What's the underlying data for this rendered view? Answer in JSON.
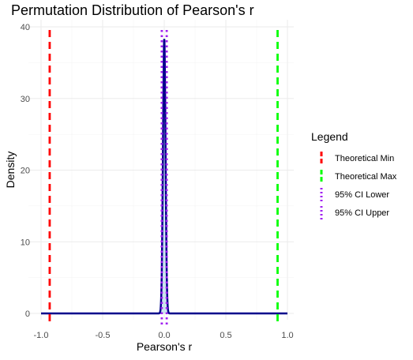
{
  "chart_data": {
    "type": "line",
    "title": "Permutation Distribution of Pearson's r",
    "xlabel": "Pearson's r",
    "ylabel": "Density",
    "xlim": [
      -1.0,
      1.0
    ],
    "ylim": [
      0,
      40
    ],
    "x_ticks": [
      -1.0,
      -0.5,
      0.0,
      0.5,
      1.0
    ],
    "x_tick_labels": [
      "-1.0",
      "-0.5",
      "0.0",
      "0.5",
      "1.0"
    ],
    "y_ticks": [
      0,
      10,
      20,
      30,
      40
    ],
    "y_tick_labels": [
      "0",
      "10",
      "20",
      "30",
      "40"
    ],
    "grid": true,
    "density_curve": {
      "color": "#00008b",
      "fill": "#add8e6",
      "mean": 0.0,
      "sd": 0.0104,
      "peak": 38.3
    },
    "reference_lines": [
      {
        "name": "Theoretical Min",
        "x": -0.93,
        "color": "#ff0000",
        "style": "dashed"
      },
      {
        "name": "Theoretical Max",
        "x": 0.92,
        "color": "#00ff00",
        "style": "dashed"
      },
      {
        "name": "95% CI Lower",
        "x": -0.02,
        "color": "#a020f0",
        "style": "dotted"
      },
      {
        "name": "95% CI Upper",
        "x": 0.02,
        "color": "#a020f0",
        "style": "dotted"
      }
    ],
    "legend": {
      "title": "Legend",
      "position": "right",
      "items": [
        "Theoretical Min",
        "Theoretical Max",
        "95% CI Lower",
        "95% CI Upper"
      ]
    }
  }
}
